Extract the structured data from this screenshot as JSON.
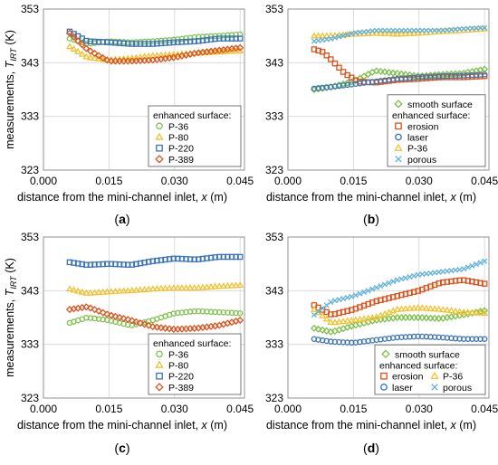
{
  "chart_data": [
    {
      "type": "scatter",
      "panel_label": "(a)",
      "xlabel": "distance from the mini-channel inlet, x (m)",
      "ylabel": "measurements, T_IRT (K)",
      "ylabel_main": "measurements, ",
      "ylabel_T": "T",
      "ylabel_sub": "IRT",
      "ylabel_unit": " (K)",
      "xlim": [
        0,
        0.046
      ],
      "ylim": [
        323,
        353
      ],
      "x_ticks": [
        "0.000",
        "0.015",
        "0.030",
        "0.045"
      ],
      "x_tick_values": [
        0,
        0.015,
        0.03,
        0.045
      ],
      "y_ticks": [
        "323",
        "333",
        "343",
        "353"
      ],
      "y_tick_values": [
        323,
        333,
        343,
        353
      ],
      "grid": true,
      "legend_position": "bottom-right",
      "legend_title": "enhanced surface:",
      "legend_columns": 1,
      "series": [
        {
          "name": "P-36",
          "marker": "circle",
          "color": "#7dc14b",
          "x": [
            0.006,
            0.01,
            0.015,
            0.02,
            0.025,
            0.03,
            0.035,
            0.04,
            0.045
          ],
          "y": [
            347.5,
            346.5,
            347.0,
            346.8,
            347.0,
            347.3,
            347.8,
            348.0,
            348.3
          ]
        },
        {
          "name": "P-80",
          "marker": "triangle",
          "color": "#f2c12e",
          "x": [
            0.006,
            0.01,
            0.015,
            0.02,
            0.025,
            0.03,
            0.035,
            0.04,
            0.045
          ],
          "y": [
            346.0,
            344.0,
            343.5,
            343.8,
            344.3,
            344.5,
            344.8,
            345.0,
            345.2
          ]
        },
        {
          "name": "P-220",
          "marker": "square",
          "color": "#3a74b5",
          "x": [
            0.006,
            0.01,
            0.015,
            0.02,
            0.025,
            0.03,
            0.035,
            0.04,
            0.045
          ],
          "y": [
            348.8,
            347.0,
            346.8,
            346.5,
            346.5,
            346.8,
            347.0,
            347.5,
            347.5
          ]
        },
        {
          "name": "P-389",
          "marker": "diamond",
          "color": "#d9541e",
          "x": [
            0.006,
            0.01,
            0.015,
            0.02,
            0.025,
            0.03,
            0.035,
            0.04,
            0.045
          ],
          "y": [
            348.5,
            345.5,
            343.3,
            343.3,
            343.5,
            344.0,
            344.8,
            345.3,
            345.8
          ]
        }
      ]
    },
    {
      "type": "scatter",
      "panel_label": "(b)",
      "xlabel": "distance from the mini-channel inlet, x (m)",
      "xlim": [
        0,
        0.046
      ],
      "ylim": [
        323,
        353
      ],
      "x_ticks": [
        "0.000",
        "0.015",
        "0.030",
        "0.045"
      ],
      "x_tick_values": [
        0,
        0.015,
        0.03,
        0.045
      ],
      "y_ticks": [
        "323",
        "333",
        "343",
        "353"
      ],
      "y_tick_values": [
        323,
        333,
        343,
        353
      ],
      "grid": true,
      "legend_position": "bottom-right",
      "legend_pre": "smooth surface",
      "legend_title": "enhanced surface:",
      "legend_columns": 1,
      "series": [
        {
          "name": "smooth surface",
          "marker": "diamond",
          "color": "#7dc14b",
          "x": [
            0.006,
            0.01,
            0.015,
            0.02,
            0.025,
            0.03,
            0.035,
            0.04,
            0.045
          ],
          "y": [
            338.0,
            338.5,
            339.5,
            341.5,
            341.0,
            340.5,
            340.8,
            341.0,
            341.8
          ]
        },
        {
          "name": "erosion",
          "marker": "square",
          "color": "#d9541e",
          "x": [
            0.006,
            0.008,
            0.01,
            0.013,
            0.016,
            0.02,
            0.025,
            0.03,
            0.035,
            0.04,
            0.045
          ],
          "y": [
            345.5,
            345.0,
            343.5,
            341.0,
            339.5,
            339.3,
            339.8,
            340.0,
            340.3,
            340.3,
            340.5
          ]
        },
        {
          "name": "laser",
          "marker": "circle",
          "color": "#3a74b5",
          "x": [
            0.006,
            0.01,
            0.015,
            0.02,
            0.025,
            0.03,
            0.035,
            0.04,
            0.045
          ],
          "y": [
            338.2,
            338.5,
            339.0,
            339.5,
            340.0,
            340.3,
            340.5,
            340.6,
            340.8
          ]
        },
        {
          "name": "P-36",
          "marker": "triangle",
          "color": "#f2c12e",
          "x": [
            0.006,
            0.01,
            0.015,
            0.02,
            0.025,
            0.03,
            0.035,
            0.04,
            0.045
          ],
          "y": [
            348.0,
            348.0,
            348.3,
            348.5,
            348.3,
            348.5,
            348.8,
            349.0,
            349.3
          ]
        },
        {
          "name": "porous",
          "marker": "x",
          "color": "#5fb2dc",
          "x": [
            0.006,
            0.01,
            0.015,
            0.02,
            0.025,
            0.03,
            0.035,
            0.04,
            0.045
          ],
          "y": [
            347.0,
            347.5,
            348.5,
            349.0,
            349.0,
            349.0,
            349.0,
            349.3,
            349.5
          ]
        }
      ]
    },
    {
      "type": "scatter",
      "panel_label": "(c)",
      "xlabel": "distance from the mini-channel inlet, x (m)",
      "ylabel": "measurements, T_IRT (K)",
      "ylabel_main": "measurements, ",
      "ylabel_T": "T",
      "ylabel_sub": "IRT",
      "ylabel_unit": " (K)",
      "xlim": [
        0,
        0.046
      ],
      "ylim": [
        323,
        353
      ],
      "x_ticks": [
        "0.000",
        "0.015",
        "0.030",
        "0.045"
      ],
      "x_tick_values": [
        0,
        0.015,
        0.03,
        0.045
      ],
      "y_ticks": [
        "323",
        "333",
        "343",
        "353"
      ],
      "y_tick_values": [
        323,
        333,
        343,
        353
      ],
      "grid": true,
      "legend_position": "bottom-right",
      "legend_title": "enhanced surface:",
      "legend_columns": 1,
      "series": [
        {
          "name": "P-36",
          "marker": "circle",
          "color": "#7dc14b",
          "x": [
            0.006,
            0.01,
            0.015,
            0.02,
            0.025,
            0.03,
            0.035,
            0.04,
            0.045
          ],
          "y": [
            337.0,
            338.0,
            337.5,
            336.5,
            337.5,
            338.8,
            339.2,
            339.0,
            338.8
          ]
        },
        {
          "name": "P-80",
          "marker": "triangle",
          "color": "#f2c12e",
          "x": [
            0.006,
            0.01,
            0.015,
            0.02,
            0.025,
            0.03,
            0.035,
            0.04,
            0.045
          ],
          "y": [
            343.3,
            342.5,
            342.8,
            343.0,
            343.3,
            343.5,
            343.5,
            343.8,
            344.0
          ]
        },
        {
          "name": "P-220",
          "marker": "square",
          "color": "#3a74b5",
          "x": [
            0.006,
            0.01,
            0.015,
            0.02,
            0.025,
            0.03,
            0.035,
            0.04,
            0.045
          ],
          "y": [
            348.3,
            347.8,
            348.0,
            347.8,
            348.5,
            349.0,
            348.8,
            349.3,
            349.3
          ]
        },
        {
          "name": "P-389",
          "marker": "diamond",
          "color": "#d9541e",
          "x": [
            0.006,
            0.01,
            0.015,
            0.02,
            0.025,
            0.03,
            0.035,
            0.04,
            0.045
          ],
          "y": [
            339.5,
            340.0,
            338.5,
            337.5,
            336.3,
            335.8,
            336.0,
            336.5,
            337.5
          ]
        }
      ]
    },
    {
      "type": "scatter",
      "panel_label": "(d)",
      "xlabel": "distance from the mini-channel inlet, x (m)",
      "xlim": [
        0,
        0.046
      ],
      "ylim": [
        323,
        353
      ],
      "x_ticks": [
        "0.000",
        "0.015",
        "0.030",
        "0.045"
      ],
      "x_tick_values": [
        0,
        0.015,
        0.03,
        0.045
      ],
      "y_ticks": [
        "323",
        "333",
        "343",
        "353"
      ],
      "y_tick_values": [
        323,
        333,
        343,
        353
      ],
      "grid": true,
      "legend_position": "bottom-right",
      "legend_pre": "smooth surface",
      "legend_title": "enhanced surface:",
      "legend_columns": 2,
      "series": [
        {
          "name": "smooth surface",
          "marker": "diamond",
          "color": "#7dc14b",
          "x": [
            0.006,
            0.01,
            0.015,
            0.02,
            0.025,
            0.03,
            0.035,
            0.04,
            0.045
          ],
          "y": [
            336.0,
            335.3,
            336.5,
            337.5,
            338.0,
            338.0,
            337.8,
            338.5,
            339.3
          ]
        },
        {
          "name": "erosion",
          "marker": "square",
          "color": "#d9541e",
          "x": [
            0.006,
            0.01,
            0.015,
            0.02,
            0.025,
            0.03,
            0.035,
            0.04,
            0.045
          ],
          "y": [
            340.3,
            338.5,
            339.5,
            341.0,
            342.0,
            343.0,
            344.5,
            345.0,
            344.3
          ]
        },
        {
          "name": "P-36",
          "marker": "triangle",
          "color": "#f2c12e",
          "x": [
            0.006,
            0.01,
            0.015,
            0.02,
            0.025,
            0.03,
            0.035,
            0.04,
            0.045
          ],
          "y": [
            339.5,
            337.0,
            337.5,
            338.0,
            339.5,
            339.8,
            339.5,
            339.0,
            338.8
          ]
        },
        {
          "name": "laser",
          "marker": "circle",
          "color": "#3a74b5",
          "x": [
            0.006,
            0.01,
            0.015,
            0.02,
            0.025,
            0.03,
            0.035,
            0.04,
            0.045
          ],
          "y": [
            334.0,
            333.5,
            333.3,
            333.8,
            334.3,
            334.5,
            334.3,
            334.0,
            334.0
          ]
        },
        {
          "name": "porous",
          "marker": "x",
          "color": "#5fb2dc",
          "x": [
            0.006,
            0.01,
            0.015,
            0.02,
            0.025,
            0.03,
            0.035,
            0.04,
            0.045
          ],
          "y": [
            338.5,
            341.0,
            342.0,
            343.5,
            345.0,
            346.0,
            346.5,
            347.0,
            348.5
          ]
        }
      ]
    }
  ]
}
